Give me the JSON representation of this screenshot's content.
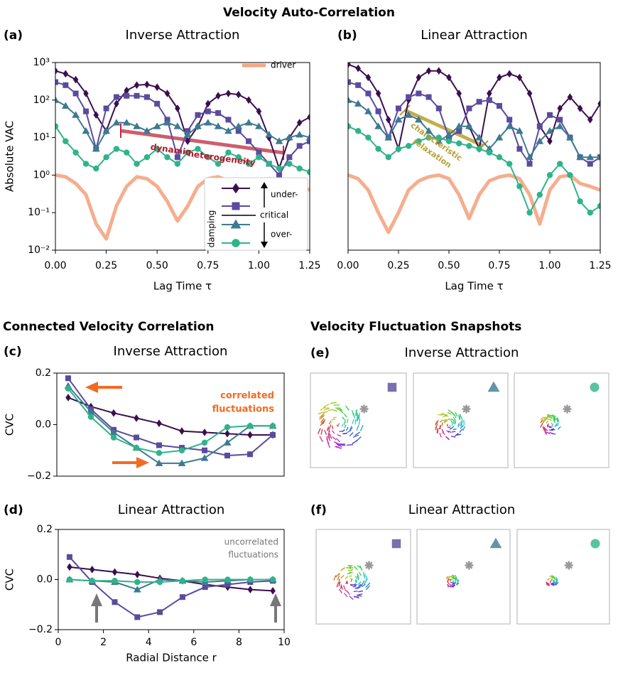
{
  "titles": {
    "vac": "Velocity Auto-Correlation",
    "cvc": "Connected Velocity Correlation"
  },
  "chart_data": [
    {
      "type": "line",
      "label": "(a)",
      "title": "Inverse Attraction",
      "xlabel": "Lag Time τ",
      "ylabel": "Absolute VAC",
      "yscale": "log",
      "x": [
        0,
        0.05,
        0.1,
        0.15,
        0.2,
        0.25,
        0.3,
        0.35,
        0.4,
        0.45,
        0.5,
        0.55,
        0.6,
        0.65,
        0.7,
        0.75,
        0.8,
        0.85,
        0.9,
        0.95,
        1.0,
        1.05,
        1.1,
        1.15,
        1.2,
        1.25
      ],
      "xlim": [
        0,
        1.25
      ],
      "ylim": [
        0.01,
        1000
      ],
      "xticks": [
        {
          "value": 0,
          "label": "0.00"
        },
        0.25,
        {
          "value": 0.5,
          "label": "0.50"
        },
        0.75,
        {
          "value": 1,
          "label": "1.00"
        },
        1.25
      ],
      "yticks": [
        {
          "value": 0.01,
          "label": "10⁻²"
        },
        {
          "value": 0.1,
          "label": "10⁻¹"
        },
        {
          "value": 1,
          "label": "10⁰"
        },
        {
          "value": 10,
          "label": "10¹"
        },
        {
          "value": 100,
          "label": "10²"
        },
        {
          "value": 1000,
          "label": "10³"
        }
      ],
      "series": [
        {
          "name": "driver",
          "color": "#f4a582",
          "marker": "none",
          "values": [
            1,
            0.9,
            0.6,
            0.3,
            0.05,
            0.02,
            0.15,
            0.5,
            0.9,
            0.8,
            0.5,
            0.2,
            0.06,
            0.15,
            0.5,
            0.8,
            0.9,
            0.7,
            0.3,
            0.4,
            0.7,
            0.8,
            0.6,
            0.5,
            0.5,
            0.4
          ]
        },
        {
          "color": "#3b0f4f",
          "marker": "diamond",
          "values": [
            600,
            500,
            350,
            150,
            40,
            15,
            80,
            180,
            250,
            260,
            220,
            150,
            60,
            8,
            20,
            80,
            130,
            150,
            140,
            100,
            50,
            10,
            1.5,
            10,
            25,
            35
          ]
        },
        {
          "color": "#5b4a9e",
          "marker": "square",
          "values": [
            300,
            250,
            150,
            50,
            5,
            60,
            120,
            130,
            130,
            120,
            80,
            30,
            3,
            15,
            40,
            50,
            45,
            30,
            15,
            8,
            4,
            2,
            1,
            3,
            6,
            8
          ]
        },
        {
          "color": "#3e7a91",
          "marker": "triangle",
          "values": [
            100,
            70,
            40,
            15,
            5,
            15,
            25,
            25,
            20,
            15,
            20,
            25,
            20,
            12,
            20,
            25,
            20,
            15,
            20,
            25,
            20,
            12,
            8,
            10,
            12,
            10
          ]
        },
        {
          "color": "#2fb38a",
          "marker": "circle",
          "values": [
            20,
            8,
            4,
            2,
            1.5,
            3,
            5,
            4,
            2,
            3,
            5,
            3,
            2,
            4,
            5,
            3,
            2,
            4,
            3,
            2,
            3,
            2,
            1.5,
            2,
            1.5,
            1.2
          ]
        }
      ],
      "legend_labels": {
        "under": "under-",
        "critical": "critical",
        "over": "over-",
        "damping": "damping"
      },
      "annotations": [
        {
          "text": [
            "dynamic",
            "heterogeneity"
          ]
        }
      ]
    },
    {
      "type": "line",
      "label": "(b)",
      "title": "Linear Attraction",
      "xlabel": "Lag Time τ",
      "yscale": "log",
      "x": [
        0,
        0.05,
        0.1,
        0.15,
        0.2,
        0.25,
        0.3,
        0.35,
        0.4,
        0.45,
        0.5,
        0.55,
        0.6,
        0.65,
        0.7,
        0.75,
        0.8,
        0.85,
        0.9,
        0.95,
        1.0,
        1.05,
        1.1,
        1.15,
        1.2,
        1.25
      ],
      "xlim": [
        0,
        1.25
      ],
      "ylim": [
        0.01,
        1000
      ],
      "xticks": [
        {
          "value": 0,
          "label": "0.00"
        },
        0.25,
        {
          "value": 0.5,
          "label": "0.50"
        },
        0.75,
        {
          "value": 1,
          "label": "1.00"
        },
        1.25
      ],
      "series": [
        {
          "color": "#f4a582",
          "marker": "none",
          "values": [
            1,
            0.8,
            0.4,
            0.1,
            0.03,
            0.1,
            0.4,
            0.7,
            0.9,
            1,
            0.8,
            0.3,
            0.07,
            0.3,
            0.7,
            0.9,
            1,
            0.8,
            0.3,
            0.05,
            0.4,
            0.9,
            1,
            0.6,
            0.5,
            0.4
          ]
        },
        {
          "color": "#3b0f4f",
          "marker": "diamond",
          "values": [
            900,
            700,
            400,
            150,
            30,
            5,
            100,
            400,
            600,
            600,
            400,
            150,
            20,
            5,
            150,
            400,
            500,
            400,
            150,
            20,
            8,
            60,
            120,
            60,
            30,
            80
          ]
        },
        {
          "color": "#5b4a9e",
          "marker": "square",
          "values": [
            300,
            250,
            150,
            50,
            10,
            60,
            120,
            150,
            120,
            60,
            10,
            15,
            60,
            90,
            100,
            70,
            30,
            5,
            2,
            20,
            40,
            30,
            10,
            3,
            2,
            3
          ]
        },
        {
          "color": "#3e7a91",
          "marker": "triangle",
          "values": [
            100,
            80,
            50,
            20,
            10,
            30,
            40,
            30,
            15,
            8,
            12,
            20,
            20,
            10,
            5,
            10,
            20,
            15,
            3,
            8,
            15,
            20,
            10,
            3,
            3,
            3
          ]
        },
        {
          "color": "#2fb38a",
          "marker": "circle",
          "values": [
            20,
            15,
            10,
            5,
            3,
            5,
            6,
            8,
            10,
            10,
            8,
            7,
            6,
            5,
            4,
            3,
            2,
            0.5,
            0.1,
            0.3,
            1,
            2,
            1,
            0.2,
            0.1,
            0.15
          ]
        }
      ],
      "annotations": [
        {
          "text": [
            "characteristic",
            "relaxation"
          ]
        }
      ]
    },
    {
      "type": "line",
      "label": "(c)",
      "title": "Inverse Attraction",
      "ylabel": "CVC",
      "x": [
        0.5,
        1.5,
        2.5,
        3.5,
        4.5,
        5.5,
        6.5,
        7.5,
        8.5,
        9.5
      ],
      "xlim": [
        0,
        10
      ],
      "ylim": [
        -0.2,
        0.2
      ],
      "yticks": [
        {
          "value": -0.2,
          "label": "−0.2"
        },
        {
          "value": 0,
          "label": "0.0"
        },
        0.2
      ],
      "series": [
        {
          "color": "#3b0f4f",
          "marker": "diamond",
          "values": [
            0.105,
            0.07,
            0.045,
            0.025,
            0.005,
            -0.025,
            -0.03,
            -0.035,
            -0.04,
            -0.04
          ]
        },
        {
          "color": "#5b4a9e",
          "marker": "square",
          "values": [
            0.18,
            0.06,
            -0.02,
            -0.05,
            -0.08,
            -0.09,
            -0.1,
            -0.12,
            -0.115,
            -0.04
          ]
        },
        {
          "color": "#3e7a91",
          "marker": "triangle",
          "values": [
            0.15,
            0.05,
            -0.03,
            -0.09,
            -0.15,
            -0.15,
            -0.13,
            -0.07,
            -0.005,
            -0.005
          ]
        },
        {
          "color": "#2fb38a",
          "marker": "circle",
          "values": [
            0.14,
            0.03,
            -0.05,
            -0.09,
            -0.11,
            -0.1,
            -0.07,
            -0.01,
            -0.005,
            -0.005
          ]
        }
      ],
      "annotations": [
        {
          "text": [
            "correlated",
            "fluctuations"
          ]
        }
      ]
    },
    {
      "type": "line",
      "label": "(d)",
      "title": "Linear Attraction",
      "xlabel": "Radial Distance r",
      "ylabel": "CVC",
      "x": [
        0.5,
        1.5,
        2.5,
        3.5,
        4.5,
        5.5,
        6.5,
        7.5,
        8.5,
        9.5
      ],
      "xlim": [
        0,
        10
      ],
      "ylim": [
        -0.2,
        0.2
      ],
      "xticks": [
        0,
        2,
        4,
        6,
        8,
        10
      ],
      "yticks": [
        {
          "value": -0.2,
          "label": "−0.2"
        },
        {
          "value": 0,
          "label": "0.0"
        },
        0.2
      ],
      "series": [
        {
          "color": "#3b0f4f",
          "marker": "diamond",
          "values": [
            0.05,
            0.04,
            0.03,
            0.02,
            0.005,
            -0.005,
            -0.02,
            -0.03,
            -0.04,
            -0.045
          ]
        },
        {
          "color": "#5b4a9e",
          "marker": "square",
          "values": [
            0.09,
            -0.01,
            -0.09,
            -0.15,
            -0.13,
            -0.07,
            -0.03,
            -0.02,
            -0.01,
            -0.005
          ]
        },
        {
          "color": "#3e7a91",
          "marker": "triangle",
          "values": [
            0,
            -0.005,
            -0.01,
            -0.04,
            0,
            -0.005,
            -0.01,
            -0.005,
            0,
            0
          ]
        },
        {
          "color": "#2fb38a",
          "marker": "circle",
          "values": [
            0,
            -0.005,
            -0.005,
            -0.01,
            -0.01,
            -0.005,
            0,
            0,
            0,
            0
          ]
        }
      ],
      "annotations": [
        {
          "text": [
            "uncorrelated",
            "fluctuations"
          ]
        }
      ]
    }
  ],
  "snapshots": {
    "title": "Velocity Fluctuation Snapshots",
    "panels": [
      {
        "label": "(e)",
        "title": "Inverse Attraction"
      },
      {
        "label": "(f)",
        "title": "Linear Attraction"
      }
    ]
  }
}
